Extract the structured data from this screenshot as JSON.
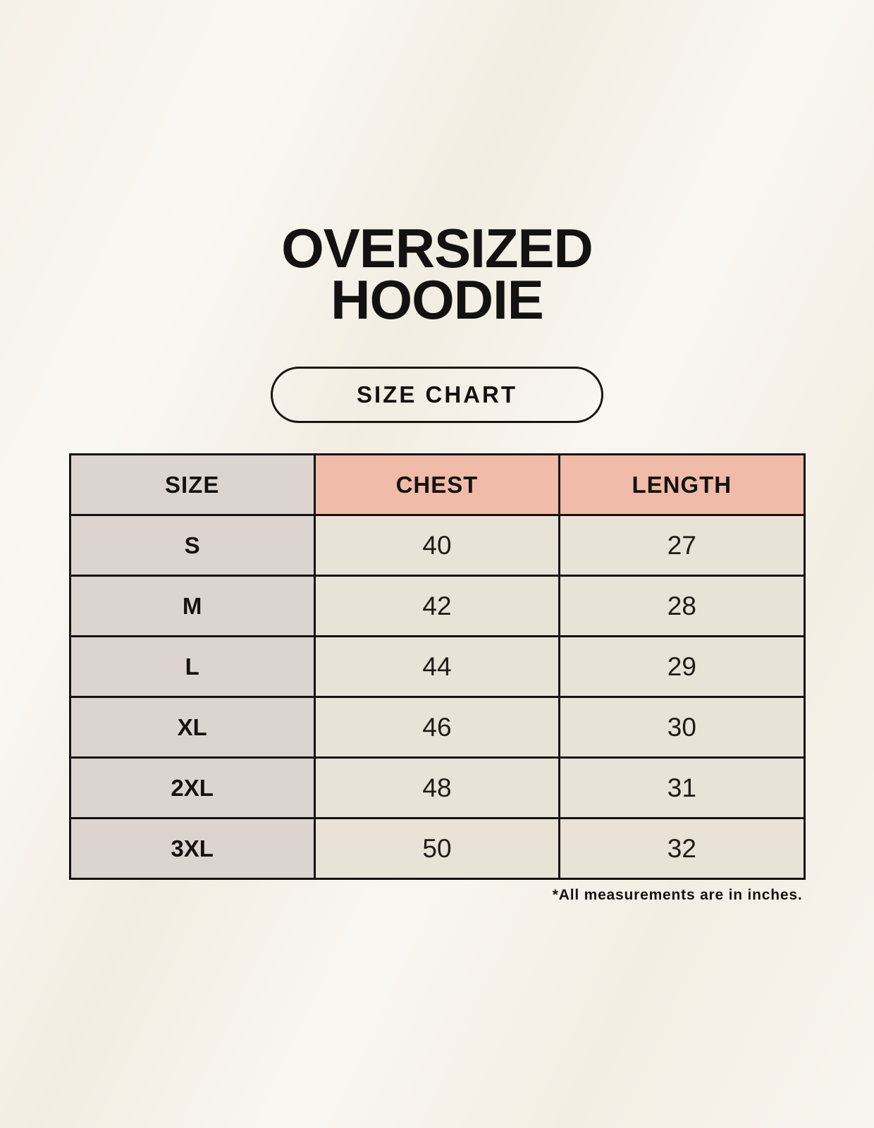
{
  "header": {
    "title_line1": "OVERSIZED",
    "title_line2": "HOODIE",
    "size_chart_button": "SIZE CHART"
  },
  "footnote": "*All measurements are in inches.",
  "colors": {
    "background": "#f5f1e8",
    "size_column_bg": "#dcd5cf",
    "accent_header_bg": "#f0bba8",
    "data_cell_bg": "#e9e2d7",
    "border_and_text": "#141210"
  },
  "chart_data": {
    "type": "table",
    "title": "OVERSIZED HOODIE",
    "subtitle": "SIZE CHART",
    "columns": [
      "SIZE",
      "CHEST",
      "LENGTH"
    ],
    "rows": [
      [
        "S",
        "40",
        "27"
      ],
      [
        "M",
        "42",
        "28"
      ],
      [
        "L",
        "44",
        "29"
      ],
      [
        "XL",
        "46",
        "30"
      ],
      [
        "2XL",
        "48",
        "31"
      ],
      [
        "3XL",
        "50",
        "32"
      ]
    ],
    "units": "inches",
    "note": "*All measurements are in inches."
  }
}
